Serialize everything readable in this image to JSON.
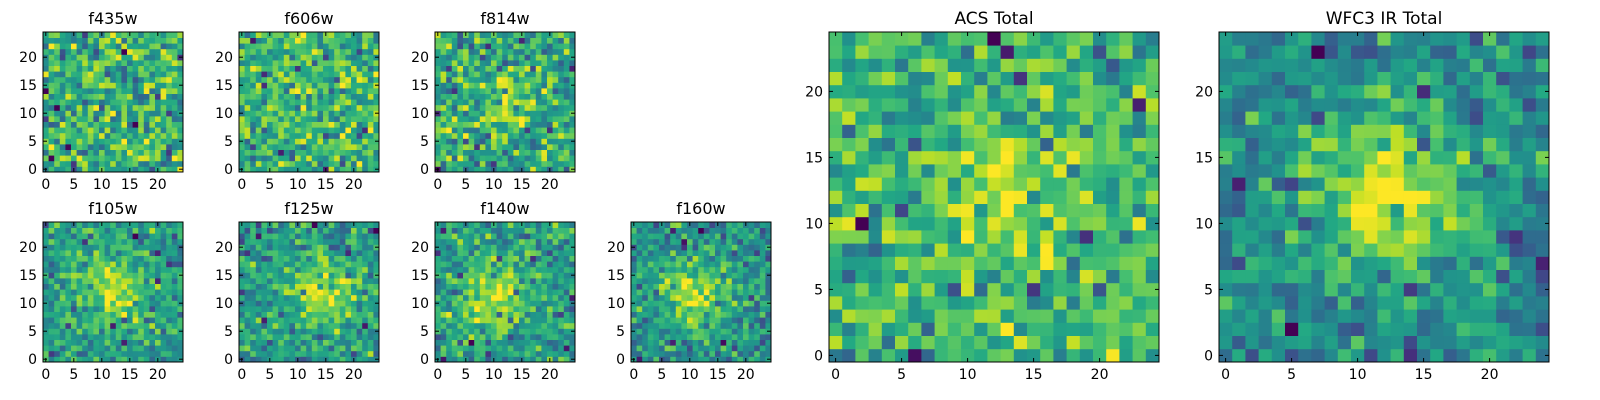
{
  "chart_data": [
    {
      "type": "heatmap",
      "title": "f435w",
      "xlim": [
        0,
        24
      ],
      "ylim": [
        0,
        24
      ],
      "xticks": [
        0,
        5,
        10,
        15,
        20
      ],
      "yticks": [
        0,
        5,
        10,
        15,
        20
      ],
      "grid_size": 25,
      "colormap": "viridis",
      "feature": {
        "cx": 12,
        "cy": 12,
        "strength": 0.0,
        "width": 4
      },
      "noise_seed": 11
    },
    {
      "type": "heatmap",
      "title": "f606w",
      "xlim": [
        0,
        24
      ],
      "ylim": [
        0,
        24
      ],
      "xticks": [
        0,
        5,
        10,
        15,
        20
      ],
      "yticks": [
        0,
        5,
        10,
        15,
        20
      ],
      "grid_size": 25,
      "colormap": "viridis",
      "feature": {
        "cx": 12,
        "cy": 12,
        "strength": 0.05,
        "width": 4
      },
      "noise_seed": 23
    },
    {
      "type": "heatmap",
      "title": "f814w",
      "xlim": [
        0,
        24
      ],
      "ylim": [
        0,
        24
      ],
      "xticks": [
        0,
        5,
        10,
        15,
        20
      ],
      "yticks": [
        0,
        5,
        10,
        15,
        20
      ],
      "grid_size": 25,
      "colormap": "viridis",
      "feature": {
        "cx": 13,
        "cy": 12,
        "strength": 0.25,
        "width": 3.5
      },
      "noise_seed": 37
    },
    {
      "type": "heatmap",
      "title": "f105w",
      "xlim": [
        0,
        24
      ],
      "ylim": [
        0,
        24
      ],
      "xticks": [
        0,
        5,
        10,
        15,
        20
      ],
      "yticks": [
        0,
        5,
        10,
        15,
        20
      ],
      "grid_size": 25,
      "colormap": "viridis",
      "feature": {
        "cx": 12,
        "cy": 12,
        "strength": 0.45,
        "width": 4
      },
      "noise_seed": 41
    },
    {
      "type": "heatmap",
      "title": "f125w",
      "xlim": [
        0,
        24
      ],
      "ylim": [
        0,
        24
      ],
      "xticks": [
        0,
        5,
        10,
        15,
        20
      ],
      "yticks": [
        0,
        5,
        10,
        15,
        20
      ],
      "grid_size": 25,
      "colormap": "viridis",
      "feature": {
        "cx": 14,
        "cy": 12,
        "strength": 0.4,
        "width": 4
      },
      "noise_seed": 53
    },
    {
      "type": "heatmap",
      "title": "f140w",
      "xlim": [
        0,
        24
      ],
      "ylim": [
        0,
        24
      ],
      "xticks": [
        0,
        5,
        10,
        15,
        20
      ],
      "yticks": [
        0,
        5,
        10,
        15,
        20
      ],
      "grid_size": 25,
      "colormap": "viridis",
      "feature": {
        "cx": 10,
        "cy": 11,
        "strength": 0.45,
        "width": 4.5
      },
      "noise_seed": 67
    },
    {
      "type": "heatmap",
      "title": "f160w",
      "xlim": [
        0,
        24
      ],
      "ylim": [
        0,
        24
      ],
      "xticks": [
        0,
        5,
        10,
        15,
        20
      ],
      "yticks": [
        0,
        5,
        10,
        15,
        20
      ],
      "grid_size": 25,
      "colormap": "viridis",
      "feature": {
        "cx": 11,
        "cy": 12,
        "strength": 0.45,
        "width": 4
      },
      "noise_seed": 79
    },
    {
      "type": "heatmap",
      "title": "ACS Total",
      "xlim": [
        0,
        24
      ],
      "ylim": [
        0,
        24
      ],
      "xticks": [
        0,
        5,
        10,
        15,
        20
      ],
      "yticks": [
        0,
        5,
        10,
        15,
        20
      ],
      "grid_size": 25,
      "colormap": "viridis",
      "feature": {
        "cx": 13,
        "cy": 12,
        "strength": 0.25,
        "width": 3.5
      },
      "noise_seed": 97
    },
    {
      "type": "heatmap",
      "title": "WFC3 IR Total",
      "xlim": [
        0,
        24
      ],
      "ylim": [
        0,
        24
      ],
      "xticks": [
        0,
        5,
        10,
        15,
        20
      ],
      "yticks": [
        0,
        5,
        10,
        15,
        20
      ],
      "grid_size": 25,
      "colormap": "viridis",
      "feature": {
        "cx": 12,
        "cy": 12,
        "strength": 0.6,
        "width": 4.5
      },
      "noise_seed": 131
    }
  ]
}
